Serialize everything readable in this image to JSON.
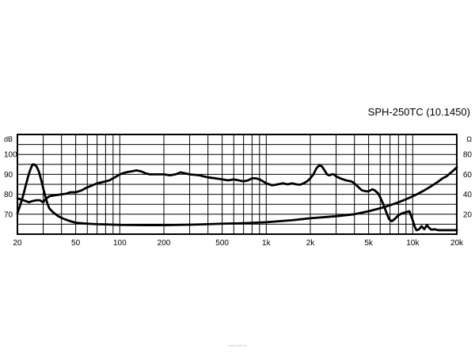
{
  "chart_data": {
    "type": "line",
    "title": "SPH-250TC (10.1450)",
    "x_scale": "log",
    "xlim": [
      20,
      20000
    ],
    "x_ticks": [
      {
        "value": 20,
        "label": "20"
      },
      {
        "value": 50,
        "label": "50"
      },
      {
        "value": 100,
        "label": "100"
      },
      {
        "value": 200,
        "label": "200"
      },
      {
        "value": 500,
        "label": "500"
      },
      {
        "value": 1000,
        "label": "1k"
      },
      {
        "value": 2000,
        "label": "2k"
      },
      {
        "value": 5000,
        "label": "5k"
      },
      {
        "value": 10000,
        "label": "10k"
      },
      {
        "value": 20000,
        "label": "20k"
      }
    ],
    "y_left": {
      "unit": "dB",
      "ylim": [
        60,
        110
      ],
      "ticks": [
        "70",
        "80",
        "90",
        "100"
      ]
    },
    "y_right": {
      "unit": "Ω",
      "ylim": [
        0,
        100
      ],
      "ticks": [
        "20",
        "40",
        "60",
        "80"
      ]
    },
    "grid": true,
    "series": [
      {
        "axis": "left",
        "points": [
          [
            20,
            78
          ],
          [
            22,
            77
          ],
          [
            24,
            76
          ],
          [
            25,
            76.5
          ],
          [
            27,
            77
          ],
          [
            28.5,
            77
          ],
          [
            30,
            76
          ],
          [
            31,
            77.5
          ],
          [
            33,
            79
          ],
          [
            36,
            79.5
          ],
          [
            40,
            80
          ],
          [
            43,
            80.3
          ],
          [
            46,
            81
          ],
          [
            50,
            81
          ],
          [
            55,
            82
          ],
          [
            60,
            83.5
          ],
          [
            65,
            84.5
          ],
          [
            70,
            85.5
          ],
          [
            75,
            86
          ],
          [
            80,
            86.5
          ],
          [
            85,
            87
          ],
          [
            90,
            88
          ],
          [
            95,
            89
          ],
          [
            100,
            90
          ],
          [
            110,
            91
          ],
          [
            120,
            91.5
          ],
          [
            130,
            92
          ],
          [
            140,
            91.5
          ],
          [
            150,
            90.5
          ],
          [
            160,
            90
          ],
          [
            180,
            90
          ],
          [
            200,
            90
          ],
          [
            220,
            89.5
          ],
          [
            240,
            90
          ],
          [
            260,
            91
          ],
          [
            280,
            90.5
          ],
          [
            300,
            90
          ],
          [
            350,
            89.5
          ],
          [
            400,
            88.5
          ],
          [
            450,
            88
          ],
          [
            500,
            87.5
          ],
          [
            550,
            87
          ],
          [
            600,
            87.5
          ],
          [
            650,
            87
          ],
          [
            700,
            86.5
          ],
          [
            750,
            87
          ],
          [
            800,
            88
          ],
          [
            850,
            88
          ],
          [
            900,
            87.5
          ],
          [
            950,
            86.5
          ],
          [
            1000,
            85.5
          ],
          [
            1100,
            84.5
          ],
          [
            1200,
            85
          ],
          [
            1300,
            85.5
          ],
          [
            1400,
            85
          ],
          [
            1500,
            85.5
          ],
          [
            1600,
            85
          ],
          [
            1700,
            84.8
          ],
          [
            1800,
            85.5
          ],
          [
            1900,
            86.5
          ],
          [
            2000,
            88
          ],
          [
            2100,
            90
          ],
          [
            2200,
            93
          ],
          [
            2300,
            94.5
          ],
          [
            2400,
            94
          ],
          [
            2500,
            92
          ],
          [
            2600,
            90
          ],
          [
            2700,
            89.5
          ],
          [
            2800,
            90
          ],
          [
            2900,
            90
          ],
          [
            3000,
            89
          ],
          [
            3200,
            88
          ],
          [
            3500,
            87
          ],
          [
            3800,
            86.5
          ],
          [
            4000,
            85.5
          ],
          [
            4200,
            84
          ],
          [
            4500,
            82
          ],
          [
            4800,
            81.5
          ],
          [
            5000,
            81.5
          ],
          [
            5300,
            82.5
          ],
          [
            5500,
            82
          ],
          [
            5800,
            80.5
          ],
          [
            6000,
            78.5
          ],
          [
            6300,
            75
          ],
          [
            6600,
            71
          ],
          [
            6900,
            67.5
          ],
          [
            7200,
            66.5
          ],
          [
            7500,
            67.5
          ],
          [
            8000,
            69.5
          ],
          [
            8500,
            70.5
          ],
          [
            9000,
            71
          ],
          [
            9500,
            71.5
          ],
          [
            10000,
            67
          ],
          [
            10300,
            64
          ],
          [
            10600,
            62
          ],
          [
            11000,
            62.3
          ],
          [
            11500,
            64
          ],
          [
            12000,
            62.5
          ],
          [
            12500,
            64.5
          ],
          [
            13000,
            63
          ],
          [
            13500,
            62.2
          ],
          [
            14000,
            62.5
          ],
          [
            15000,
            62
          ],
          [
            16000,
            62
          ],
          [
            18000,
            62
          ],
          [
            20000,
            62
          ]
        ]
      },
      {
        "axis": "right",
        "points": [
          [
            20,
            21
          ],
          [
            21,
            30
          ],
          [
            22,
            40
          ],
          [
            23,
            51
          ],
          [
            24,
            61
          ],
          [
            25,
            68
          ],
          [
            25.5,
            70
          ],
          [
            26,
            70
          ],
          [
            27,
            68
          ],
          [
            28,
            63
          ],
          [
            29,
            55
          ],
          [
            30,
            46
          ],
          [
            31,
            38
          ],
          [
            32,
            31
          ],
          [
            33,
            26
          ],
          [
            35,
            22
          ],
          [
            38,
            18
          ],
          [
            42,
            15
          ],
          [
            46,
            13
          ],
          [
            50,
            11.5
          ],
          [
            60,
            10.5
          ],
          [
            70,
            10
          ],
          [
            80,
            9.8
          ],
          [
            100,
            9.3
          ],
          [
            150,
            9
          ],
          [
            200,
            9
          ],
          [
            300,
            9.5
          ],
          [
            400,
            10
          ],
          [
            500,
            10.5
          ],
          [
            700,
            11
          ],
          [
            1000,
            12
          ],
          [
            1500,
            14
          ],
          [
            2000,
            16
          ],
          [
            3000,
            18
          ],
          [
            4000,
            20
          ],
          [
            5000,
            23
          ],
          [
            6000,
            26
          ],
          [
            7000,
            29
          ],
          [
            8000,
            32
          ],
          [
            9000,
            35
          ],
          [
            10000,
            38
          ],
          [
            11000,
            41
          ],
          [
            12000,
            44
          ],
          [
            13000,
            47
          ],
          [
            14000,
            50
          ],
          [
            15000,
            53
          ],
          [
            16000,
            56
          ],
          [
            17000,
            58
          ],
          [
            18000,
            61
          ],
          [
            19000,
            64
          ],
          [
            20000,
            67
          ]
        ]
      }
    ]
  },
  "watermark": "www.b4b4.pl"
}
